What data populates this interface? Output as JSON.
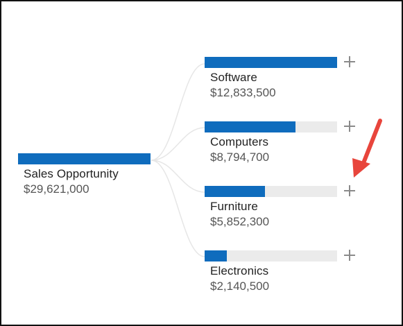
{
  "root": {
    "label": "Sales Opportunity",
    "value": "$29,621,000",
    "amount": 29621000
  },
  "children": [
    {
      "label": "Software",
      "value": "$12,833,500",
      "amount": 12833500
    },
    {
      "label": "Computers",
      "value": "$8,794,700",
      "amount": 8794700
    },
    {
      "label": "Furniture",
      "value": "$5,852,300",
      "amount": 5852300
    },
    {
      "label": "Electronics",
      "value": "$2,140,500",
      "amount": 2140500
    }
  ],
  "colors": {
    "bar": "#0f6cbd",
    "track": "#ebebeb",
    "connector": "#e6e6e6",
    "plus": "#8a8a8a",
    "arrow": "#e8453c"
  },
  "icons": {
    "expand": "plus-icon",
    "callout": "red-arrow-icon"
  }
}
